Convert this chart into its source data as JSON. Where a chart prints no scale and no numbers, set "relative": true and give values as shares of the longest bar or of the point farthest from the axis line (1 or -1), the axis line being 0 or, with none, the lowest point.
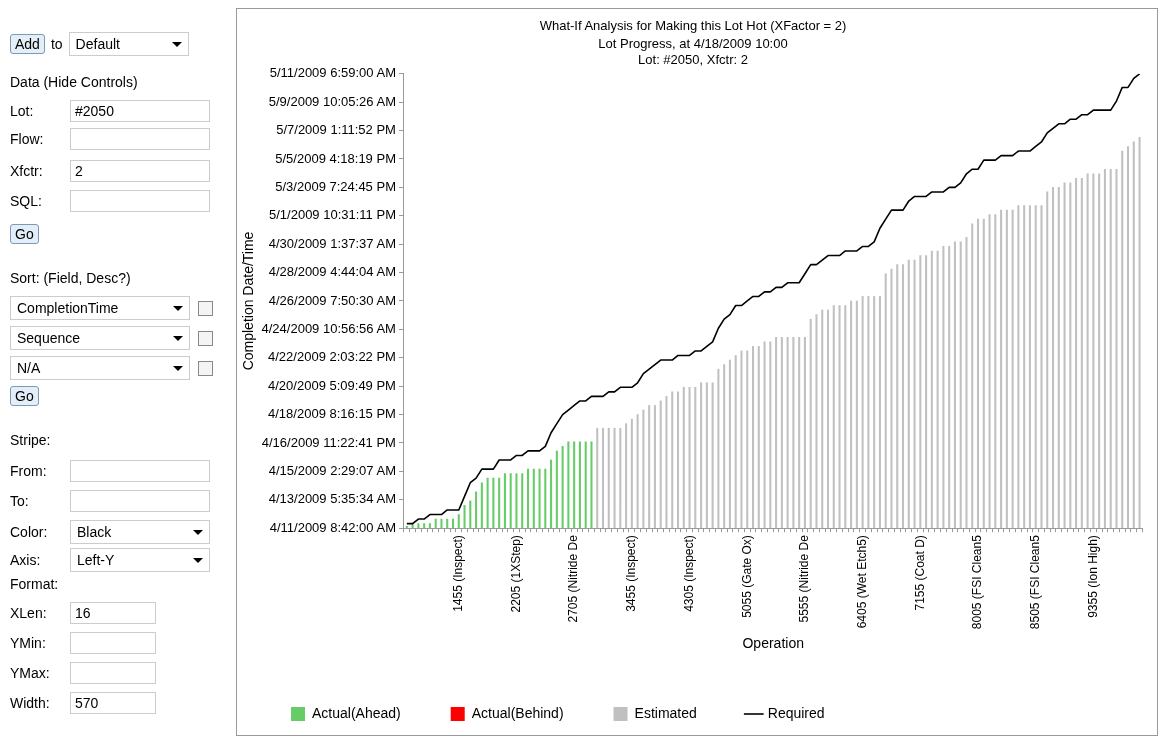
{
  "chart_data": {
    "type": "bar",
    "title": "What-If Analysis for Making this Lot Hot (XFactor = 2)",
    "subtitle": "Lot Progress, at 4/18/2009 10:00\nLot: #2050, Xfctr: 2",
    "xlabel": "Operation",
    "relative": true,
    "categories": [
      null,
      null,
      null,
      null,
      null,
      null,
      null,
      null,
      null,
      "1455 (Inspect)",
      null,
      null,
      null,
      null,
      null,
      null,
      null,
      null,
      null,
      "2205 (1XStep)",
      null,
      null,
      null,
      null,
      null,
      null,
      null,
      null,
      null,
      "2705 (Nitride De",
      null,
      null,
      null,
      null,
      null,
      null,
      null,
      null,
      null,
      "3455 (Inspect)",
      null,
      null,
      null,
      null,
      null,
      null,
      null,
      null,
      null,
      "4305 (Inspect)",
      null,
      null,
      null,
      null,
      null,
      null,
      null,
      null,
      null,
      "5055 (Gate Ox)",
      null,
      null,
      null,
      null,
      null,
      null,
      null,
      null,
      null,
      "5555 (Nitride De",
      null,
      null,
      null,
      null,
      null,
      null,
      null,
      null,
      null,
      "6405 (Wet Etch5)",
      null,
      null,
      null,
      null,
      null,
      null,
      null,
      null,
      null,
      "7155 (Coat D)",
      null,
      null,
      null,
      null,
      null,
      null,
      null,
      null,
      null,
      "8005 (FSI Clean5",
      null,
      null,
      null,
      null,
      null,
      null,
      null,
      null,
      null,
      "8505 (FSI Clean5",
      null,
      null,
      null,
      null,
      null,
      null,
      null,
      null,
      null,
      "9355 (Ion High)",
      null,
      null,
      null,
      null,
      null,
      null,
      null,
      null
    ],
    "series": [
      {
        "name": "Actual(Ahead)",
        "color": "#66cc66",
        "values": [
          0.004,
          0.01,
          0.01,
          0.01,
          0.01,
          0.02,
          0.02,
          0.02,
          0.02,
          0.03,
          0.05,
          0.06,
          0.08,
          0.1,
          0.11,
          0.11,
          0.11,
          0.12,
          0.12,
          0.12,
          0.12,
          0.13,
          0.13,
          0.13,
          0.13,
          0.15,
          0.17,
          0.18,
          0.19,
          0.19,
          0.19,
          0.19,
          0.19,
          null,
          null,
          null,
          null,
          null,
          null,
          null,
          null,
          null,
          null,
          null,
          null,
          null,
          null,
          null,
          null,
          null,
          null,
          null,
          null,
          null,
          null,
          null,
          null,
          null,
          null,
          null,
          null,
          null,
          null,
          null,
          null,
          null,
          null,
          null,
          null,
          null,
          null,
          null,
          null,
          null,
          null,
          null,
          null,
          null,
          null,
          null,
          null,
          null,
          null,
          null,
          null,
          null,
          null,
          null,
          null,
          null,
          null,
          null,
          null,
          null,
          null,
          null,
          null,
          null,
          null,
          null,
          null,
          null,
          null,
          null,
          null,
          null,
          null,
          null,
          null,
          null,
          null,
          null,
          null,
          null,
          null,
          null,
          null,
          null,
          null,
          null,
          null,
          null,
          null,
          null,
          null,
          null,
          null,
          null
        ]
      },
      {
        "name": "Actual(Behind)",
        "color": "#ff0000",
        "values": [
          null,
          null,
          null,
          null,
          null,
          null,
          null,
          null,
          null,
          null,
          null,
          null,
          null,
          null,
          null,
          null,
          null,
          null,
          null,
          null,
          null,
          null,
          null,
          null,
          null,
          null,
          null,
          null,
          null,
          null,
          null,
          null,
          null,
          null,
          null,
          null,
          null,
          null,
          null,
          null,
          null,
          null,
          null,
          null,
          null,
          null,
          null,
          null,
          null,
          null,
          null,
          null,
          null,
          null,
          null,
          null,
          null,
          null,
          null,
          null,
          null,
          null,
          null,
          null,
          null,
          null,
          null,
          null,
          null,
          null,
          null,
          null,
          null,
          null,
          null,
          null,
          null,
          null,
          null,
          null,
          null,
          null,
          null,
          null,
          null,
          null,
          null,
          null,
          null,
          null,
          null,
          null,
          null,
          null,
          null,
          null,
          null,
          null,
          null,
          null,
          null,
          null,
          null,
          null,
          null,
          null,
          null,
          null,
          null,
          null,
          null,
          null,
          null,
          null,
          null,
          null,
          null,
          null,
          null,
          null,
          null,
          null,
          null,
          null,
          null,
          null,
          null,
          null
        ]
      },
      {
        "name": "Estimated",
        "color": "#c0c0c0",
        "values": [
          null,
          null,
          null,
          null,
          null,
          null,
          null,
          null,
          null,
          null,
          null,
          null,
          null,
          null,
          null,
          null,
          null,
          null,
          null,
          null,
          null,
          null,
          null,
          null,
          null,
          null,
          null,
          null,
          null,
          null,
          null,
          null,
          null,
          0.22,
          0.22,
          0.22,
          0.22,
          0.22,
          0.23,
          0.24,
          0.25,
          0.26,
          0.27,
          0.27,
          0.28,
          0.29,
          0.3,
          0.3,
          0.31,
          0.31,
          0.31,
          0.32,
          0.32,
          0.32,
          0.35,
          0.36,
          0.37,
          0.38,
          0.39,
          0.39,
          0.4,
          0.4,
          0.41,
          0.41,
          0.42,
          0.42,
          0.42,
          0.42,
          0.42,
          0.42,
          0.46,
          0.47,
          0.48,
          0.48,
          0.49,
          0.49,
          0.49,
          0.5,
          0.5,
          0.51,
          0.51,
          0.51,
          0.51,
          0.56,
          0.57,
          0.58,
          0.58,
          0.59,
          0.59,
          0.6,
          0.6,
          0.61,
          0.61,
          0.62,
          0.62,
          0.63,
          0.63,
          0.64,
          0.67,
          0.68,
          0.68,
          0.69,
          0.69,
          0.7,
          0.7,
          0.7,
          0.71,
          0.71,
          0.71,
          0.71,
          0.71,
          0.74,
          0.75,
          0.75,
          0.76,
          0.76,
          0.77,
          0.77,
          0.78,
          0.78,
          0.78,
          0.79,
          0.79,
          0.79,
          0.83,
          0.84,
          0.85,
          0.86
        ]
      },
      {
        "name": "Required",
        "type": "line",
        "color": "#000000",
        "values": [
          0.01,
          0.01,
          0.02,
          0.02,
          0.03,
          0.03,
          0.03,
          0.04,
          0.04,
          0.04,
          0.07,
          0.1,
          0.11,
          0.13,
          0.13,
          0.13,
          0.15,
          0.15,
          0.15,
          0.16,
          0.16,
          0.17,
          0.17,
          0.17,
          0.18,
          0.21,
          0.23,
          0.25,
          0.26,
          0.27,
          0.28,
          0.28,
          0.29,
          0.29,
          0.29,
          0.3,
          0.3,
          0.31,
          0.31,
          0.31,
          0.32,
          0.34,
          0.35,
          0.36,
          0.37,
          0.37,
          0.37,
          0.38,
          0.38,
          0.38,
          0.39,
          0.39,
          0.4,
          0.41,
          0.44,
          0.46,
          0.47,
          0.49,
          0.49,
          0.5,
          0.51,
          0.51,
          0.52,
          0.52,
          0.53,
          0.53,
          0.54,
          0.54,
          0.54,
          0.56,
          0.58,
          0.58,
          0.59,
          0.6,
          0.6,
          0.6,
          0.61,
          0.61,
          0.61,
          0.62,
          0.62,
          0.63,
          0.66,
          0.68,
          0.7,
          0.7,
          0.7,
          0.72,
          0.73,
          0.73,
          0.73,
          0.74,
          0.74,
          0.74,
          0.75,
          0.75,
          0.76,
          0.78,
          0.79,
          0.79,
          0.81,
          0.81,
          0.81,
          0.82,
          0.82,
          0.82,
          0.83,
          0.83,
          0.83,
          0.84,
          0.85,
          0.87,
          0.88,
          0.89,
          0.89,
          0.9,
          0.9,
          0.91,
          0.91,
          0.92,
          0.92,
          0.92,
          0.92,
          0.94,
          0.97,
          0.97,
          0.99,
          1
        ]
      }
    ],
    "legend": "bottom",
    "marker": "none",
    "annotations": [
      "Add",
      "to",
      "Default",
      "Data (Hide Controls)",
      "Lot:",
      "#2050",
      "Flow:",
      "Xfctr:",
      "2",
      "SQL:",
      "Go",
      "Sort: (Field, Desc?)",
      "CompletionTime",
      "Sequence",
      "N/A",
      "Go",
      "Stripe:",
      "From:",
      "To:",
      "Color:",
      "Black",
      "Axis:",
      "Left-Y",
      "Format:",
      "XLen:",
      "16",
      "YMin:",
      "YMax:",
      "Width:",
      "570",
      "Completion Date/Time",
      "4/11/2009 8:42:00 AM",
      "4/13/2009 5:35:34 AM",
      "4/15/2009 2:29:07 AM",
      "4/16/2009 11:22:41 PM",
      "4/18/2009 8:16:15 PM",
      "4/20/2009 5:09:49 PM",
      "4/22/2009 2:03:22 PM",
      "4/24/2009 10:56:56 AM",
      "4/26/2009 7:50:30 AM",
      "4/28/2009 4:44:04 AM",
      "4/30/2009 1:37:37 AM",
      "5/1/2009 10:31:11 PM",
      "5/3/2009 7:24:45 PM",
      "5/5/2009 4:18:19 PM",
      "5/7/2009 1:11:52 PM",
      "5/9/2009 10:05:26 AM",
      "5/11/2009 6:59:00 AM"
    ]
  }
}
